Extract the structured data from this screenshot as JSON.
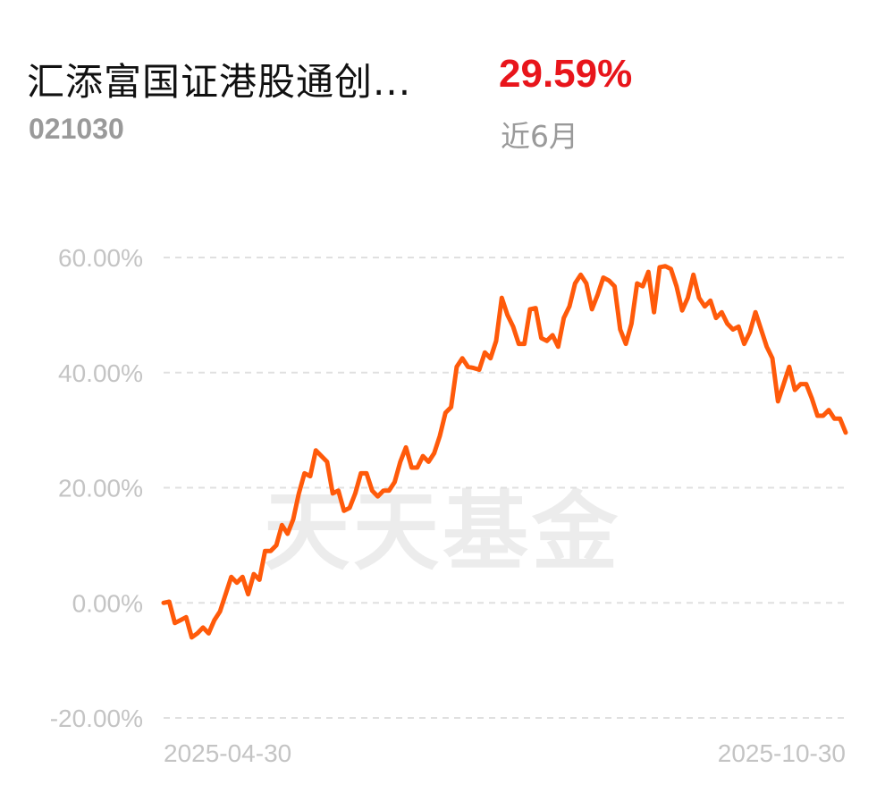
{
  "header": {
    "fund_name": "汇添富国证港股通创...",
    "fund_code": "021030",
    "return_value": "29.59%",
    "return_period": "近6月"
  },
  "watermark": "天天基金",
  "colors": {
    "line": "#ff5a0a",
    "return_positive": "#e8151b",
    "grid": "#e0e0e0",
    "tick_text": "#c4c4c4",
    "muted_text": "#9a9a9a"
  },
  "chart_data": {
    "type": "line",
    "title": "",
    "xlabel": "",
    "ylabel": "",
    "ylim": [
      -20,
      60
    ],
    "y_ticks": [
      60,
      40,
      20,
      0,
      -20
    ],
    "y_tick_labels": [
      "60.00%",
      "40.00%",
      "20.00%",
      "0.00%",
      "-20.00%"
    ],
    "x_tick_labels": [
      "2025-04-30",
      "2025-10-30"
    ],
    "x_range": [
      "2025-04-30",
      "2025-10-30"
    ],
    "grid": true,
    "series": [
      {
        "values": [
          0,
          0.2,
          -3.5,
          -3,
          -2.5,
          -6,
          -5.3,
          -4.3,
          -5.3,
          -3,
          -1.5,
          1.5,
          4.5,
          3.5,
          4.5,
          1.5,
          5,
          4,
          9,
          9,
          10,
          13.5,
          12,
          14.5,
          19,
          22.5,
          22,
          26.5,
          25.5,
          24.5,
          19,
          19.5,
          16,
          16.5,
          19,
          22.5,
          22.5,
          19.5,
          18.5,
          19.5,
          19.5,
          21,
          24.5,
          27,
          23.5,
          23.5,
          25.5,
          24.5,
          26,
          29,
          33,
          34,
          41,
          42.5,
          41,
          40.8,
          40.5,
          43.5,
          42.5,
          45.5,
          53,
          50,
          48,
          45,
          45,
          51,
          51.2,
          46,
          45.5,
          46.5,
          44.5,
          49.5,
          51.5,
          55.5,
          57,
          55.5,
          51,
          53.5,
          56.5,
          56,
          55,
          47.5,
          45,
          48.5,
          55.5,
          55,
          57.5,
          50.5,
          58.3,
          58.5,
          58,
          55,
          50.8,
          53,
          57,
          53,
          51.5,
          52.5,
          49.5,
          50.5,
          48.5,
          47.5,
          48,
          45,
          47,
          50.5,
          47.5,
          44.5,
          42.5,
          35,
          38,
          41,
          37,
          38,
          38,
          35.5,
          32.5,
          32.5,
          33.5,
          32,
          32,
          29.59
        ]
      }
    ]
  }
}
